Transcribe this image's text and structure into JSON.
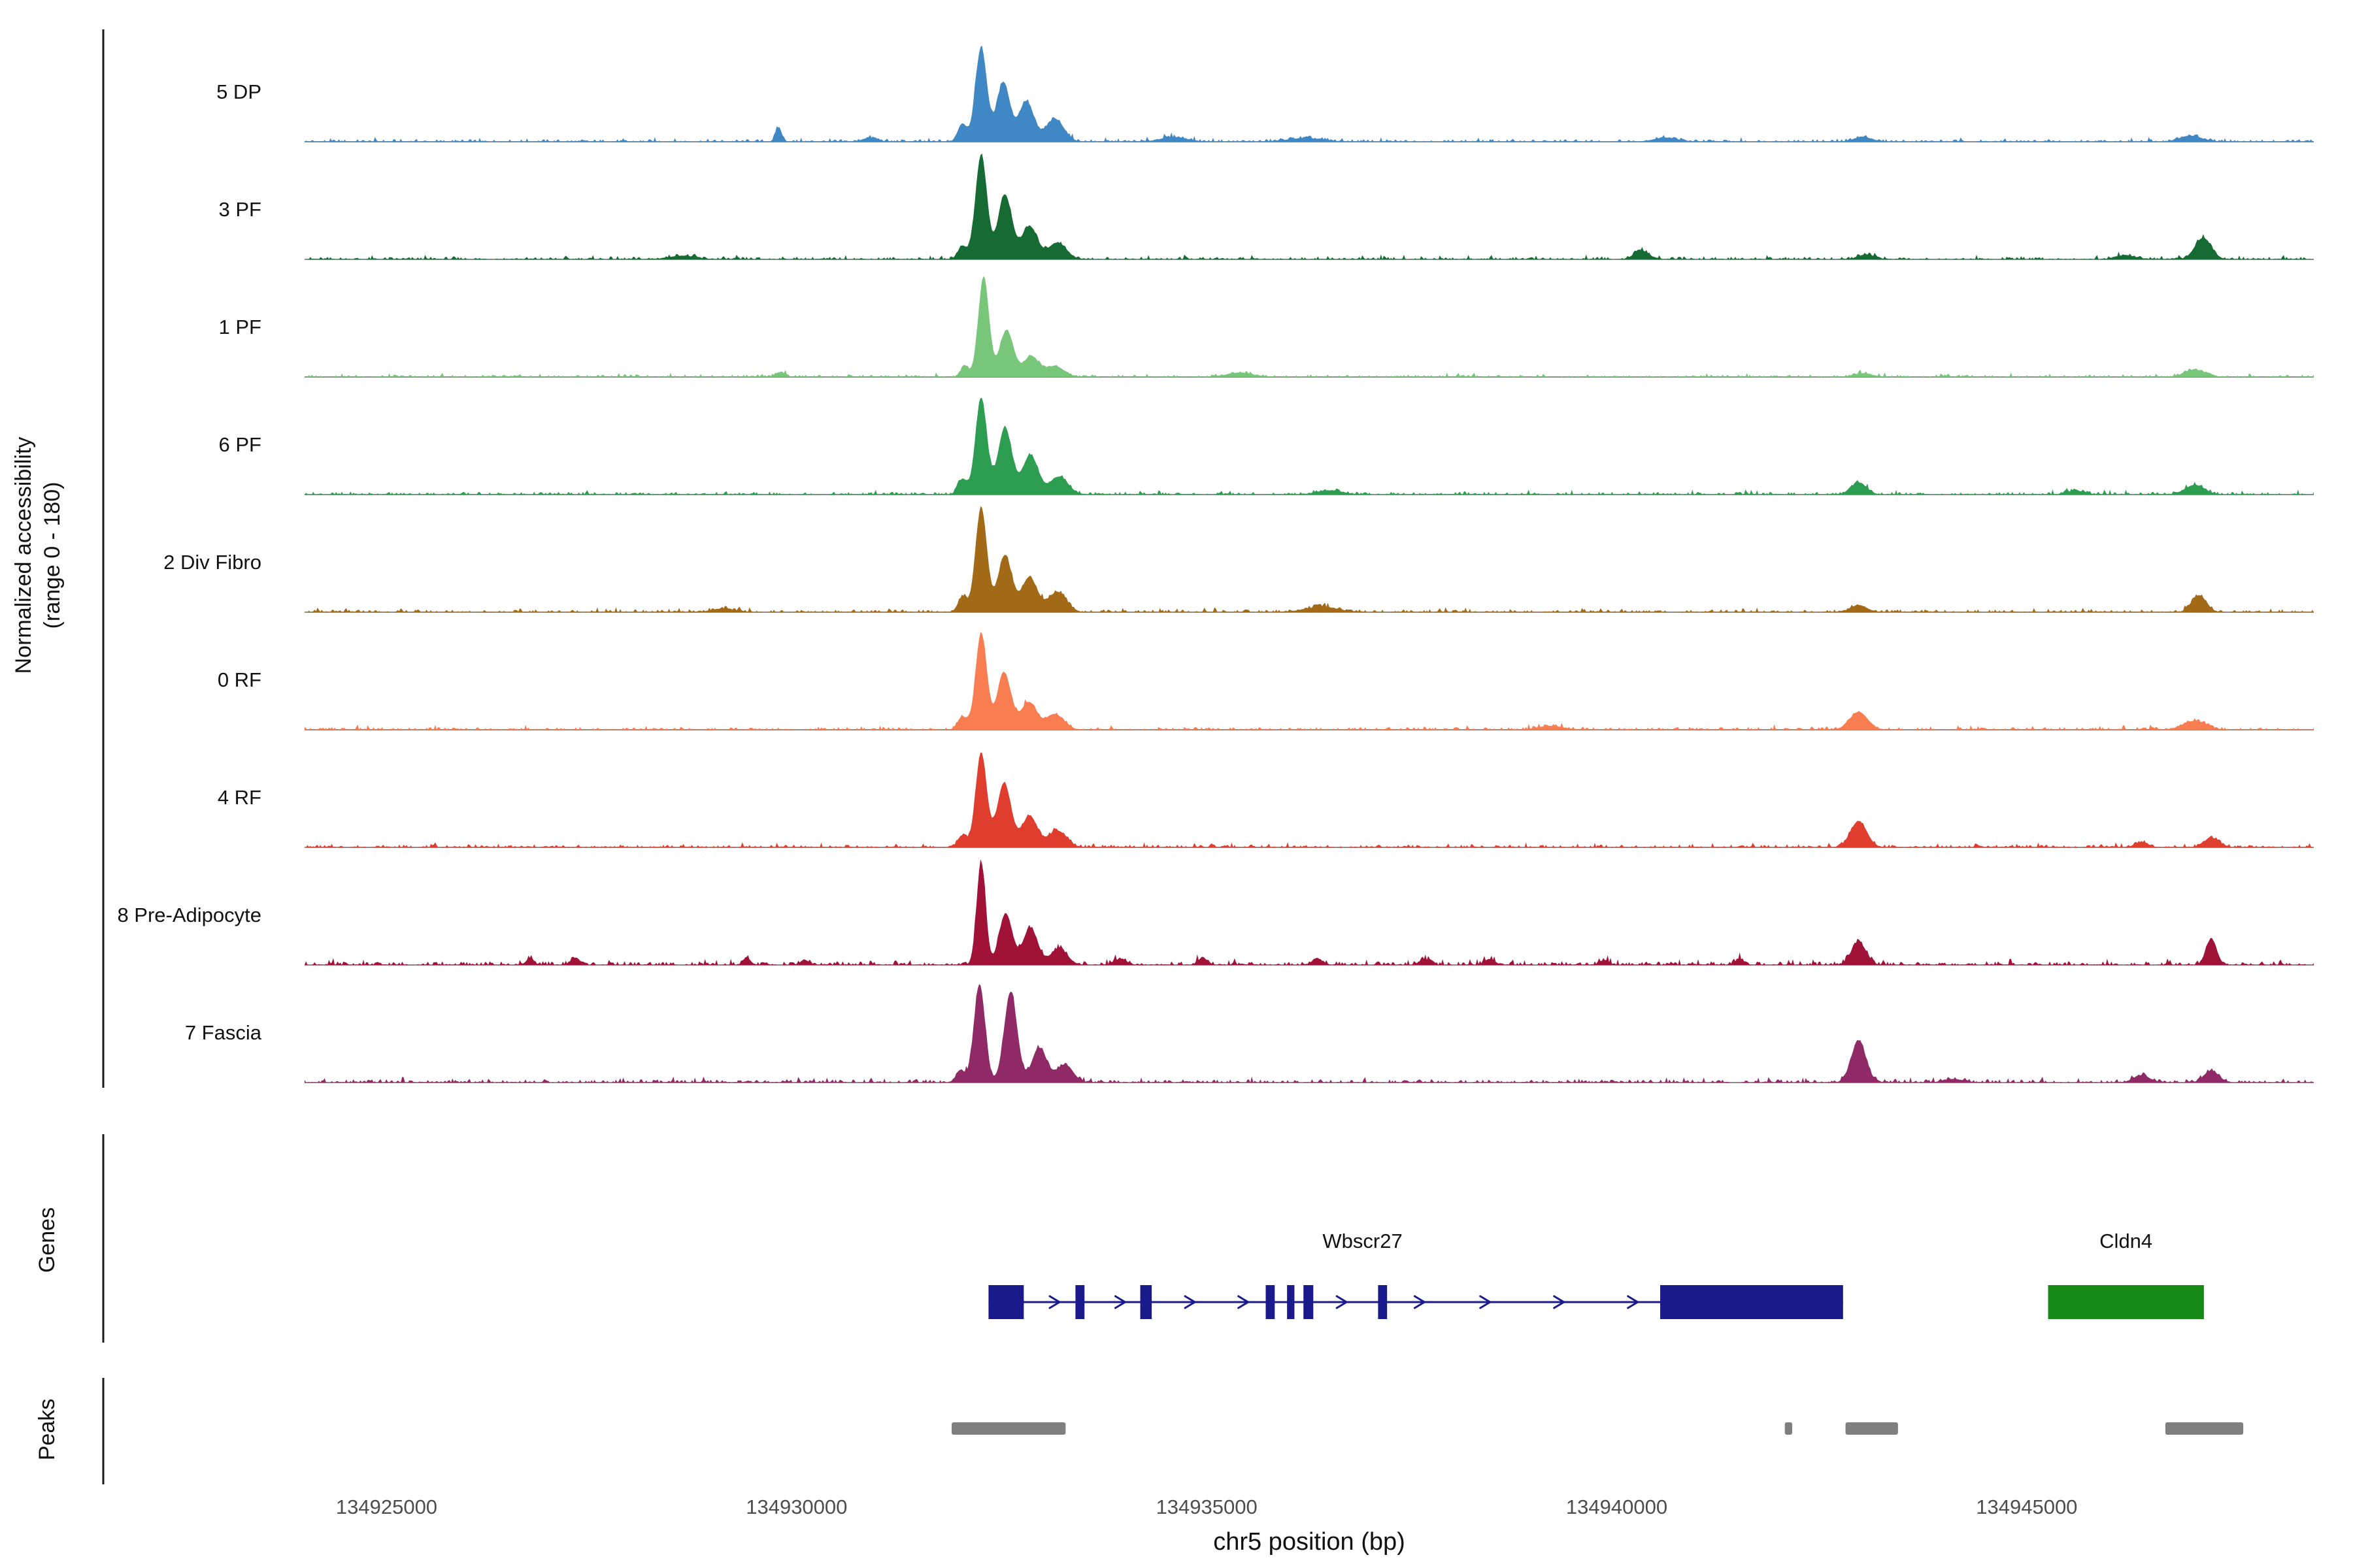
{
  "chart_data": {
    "type": "area",
    "title": "",
    "xlabel": "chr5 position (bp)",
    "y_axis_label": "Normalized accessibility\n(range 0 - 180)",
    "y_range": [
      0,
      180
    ],
    "x_domain_bp": [
      134924000,
      134948500
    ],
    "x_ticks": [
      {
        "bp": 134925000,
        "label": "134925000"
      },
      {
        "bp": 134930000,
        "label": "134930000"
      },
      {
        "bp": 134935000,
        "label": "134935000"
      },
      {
        "bp": 134940000,
        "label": "134940000"
      },
      {
        "bp": 134945000,
        "label": "134945000"
      }
    ],
    "tracks": [
      {
        "label": "5 DP",
        "color": "#3f87c5",
        "noise": 2.2,
        "seed": 1,
        "peaks": [
          [
            134932250,
            158,
            70
          ],
          [
            134932520,
            100,
            80
          ],
          [
            134932800,
            68,
            90
          ],
          [
            134933150,
            38,
            110
          ],
          [
            134932020,
            30,
            55
          ],
          [
            134929780,
            24,
            38
          ],
          [
            134930900,
            7,
            90
          ],
          [
            134934600,
            8,
            160
          ],
          [
            134936200,
            6,
            220
          ],
          [
            134940600,
            7,
            140
          ],
          [
            134943000,
            8,
            110
          ],
          [
            134947000,
            10,
            130
          ]
        ]
      },
      {
        "label": "3 PF",
        "color": "#156b33",
        "noise": 2.2,
        "seed": 2,
        "peaks": [
          [
            134932250,
            175,
            70
          ],
          [
            134932540,
            108,
            85
          ],
          [
            134932840,
            55,
            95
          ],
          [
            134933180,
            28,
            110
          ],
          [
            134932020,
            22,
            55
          ],
          [
            134928600,
            6,
            160
          ],
          [
            134940300,
            15,
            90
          ],
          [
            134943050,
            8,
            100
          ],
          [
            134947150,
            36,
            100
          ],
          [
            134946200,
            7,
            120
          ]
        ]
      },
      {
        "label": "1 PF",
        "color": "#78c679",
        "noise": 2.0,
        "seed": 3,
        "peaks": [
          [
            134932280,
            168,
            65
          ],
          [
            134932560,
            78,
            85
          ],
          [
            134932860,
            34,
            95
          ],
          [
            134933150,
            18,
            110
          ],
          [
            134932050,
            18,
            50
          ],
          [
            134929800,
            8,
            60
          ],
          [
            134935400,
            7,
            160
          ],
          [
            134943000,
            6,
            110
          ],
          [
            134947050,
            12,
            130
          ]
        ]
      },
      {
        "label": "6 PF",
        "color": "#2d9d51",
        "noise": 2.3,
        "seed": 4,
        "peaks": [
          [
            134932250,
            162,
            70
          ],
          [
            134932540,
            112,
            85
          ],
          [
            134932850,
            66,
            95
          ],
          [
            134933200,
            30,
            110
          ],
          [
            134932020,
            26,
            55
          ],
          [
            134936500,
            7,
            160
          ],
          [
            134942950,
            20,
            95
          ],
          [
            134947050,
            16,
            120
          ],
          [
            134945600,
            6,
            120
          ]
        ]
      },
      {
        "label": "2 Div Fibro",
        "color": "#a26a17",
        "noise": 2.3,
        "seed": 5,
        "peaks": [
          [
            134932250,
            175,
            70
          ],
          [
            134932540,
            95,
            85
          ],
          [
            134932840,
            58,
            95
          ],
          [
            134933180,
            34,
            110
          ],
          [
            134932020,
            24,
            55
          ],
          [
            134929100,
            6,
            140
          ],
          [
            134936400,
            9,
            200
          ],
          [
            134942950,
            12,
            95
          ],
          [
            134947100,
            28,
            90
          ]
        ]
      },
      {
        "label": "0 RF",
        "color": "#f87d51",
        "noise": 2.3,
        "seed": 6,
        "peaks": [
          [
            134932250,
            162,
            68
          ],
          [
            134932530,
            95,
            85
          ],
          [
            134932830,
            46,
            95
          ],
          [
            134933150,
            26,
            110
          ],
          [
            134932020,
            22,
            55
          ],
          [
            134942950,
            30,
            110
          ],
          [
            134947050,
            15,
            140
          ],
          [
            134939200,
            6,
            160
          ]
        ]
      },
      {
        "label": "4 RF",
        "color": "#df3d2d",
        "noise": 2.3,
        "seed": 7,
        "peaks": [
          [
            134932250,
            158,
            68
          ],
          [
            134932530,
            108,
            85
          ],
          [
            134932840,
            52,
            95
          ],
          [
            134933180,
            28,
            110
          ],
          [
            134932020,
            20,
            55
          ],
          [
            134942950,
            44,
            100
          ],
          [
            134946400,
            9,
            80
          ],
          [
            134947250,
            16,
            90
          ]
        ]
      },
      {
        "label": "8 Pre-Adipocyte",
        "color": "#a11239",
        "noise": 3.2,
        "seed": 8,
        "peaks": [
          [
            134932250,
            172,
            55
          ],
          [
            134932550,
            86,
            80
          ],
          [
            134932850,
            62,
            90
          ],
          [
            134933200,
            28,
            100
          ],
          [
            134942950,
            38,
            90
          ],
          [
            134947250,
            44,
            65
          ],
          [
            134926750,
            12,
            45
          ],
          [
            134927300,
            12,
            55
          ],
          [
            134929400,
            10,
            45
          ],
          [
            134930100,
            8,
            55
          ],
          [
            134933950,
            10,
            75
          ],
          [
            134934950,
            12,
            55
          ],
          [
            134936350,
            10,
            65
          ],
          [
            134937650,
            10,
            55
          ],
          [
            134938450,
            10,
            65
          ],
          [
            134939850,
            8,
            55
          ],
          [
            134941500,
            10,
            55
          ]
        ]
      },
      {
        "label": "7 Fascia",
        "color": "#8f2a66",
        "noise": 2.8,
        "seed": 9,
        "peaks": [
          [
            134932230,
            165,
            68
          ],
          [
            134932610,
            150,
            80
          ],
          [
            134932960,
            58,
            90
          ],
          [
            134933270,
            30,
            100
          ],
          [
            134932000,
            20,
            55
          ],
          [
            134942950,
            70,
            90
          ],
          [
            134946400,
            12,
            100
          ],
          [
            134947250,
            20,
            90
          ],
          [
            134944100,
            6,
            120
          ]
        ]
      }
    ],
    "genes": {
      "section_label": "Genes",
      "items": [
        {
          "name": "Wbscr27",
          "color": "#1a1a8c",
          "strand": "+",
          "line": [
            134932340,
            134942760
          ],
          "exons": [
            [
              134932340,
              134932770
            ],
            [
              134933400,
              134933510
            ],
            [
              134934190,
              134934330
            ],
            [
              134935720,
              134935830
            ],
            [
              134935980,
              134936070
            ],
            [
              134936180,
              134936300
            ],
            [
              134937090,
              134937200
            ],
            [
              134940530,
              134942760
            ]
          ],
          "arrows_bp": [
            134933150,
            134933950,
            134934800,
            134935450,
            134936650,
            134937600,
            134938400,
            134939300,
            134940200
          ],
          "label_bp": 134936900
        },
        {
          "name": "Cldn4",
          "color": "#168a17",
          "box": [
            134945260,
            134947160
          ],
          "label_bp": 134946210
        }
      ]
    },
    "peaks_track": {
      "section_label": "Peaks",
      "color": "#7f7f7f",
      "intervals": [
        [
          134931890,
          134933280
        ],
        [
          134942050,
          134942140
        ],
        [
          134942790,
          134943430
        ],
        [
          134946690,
          134947640
        ]
      ]
    }
  }
}
